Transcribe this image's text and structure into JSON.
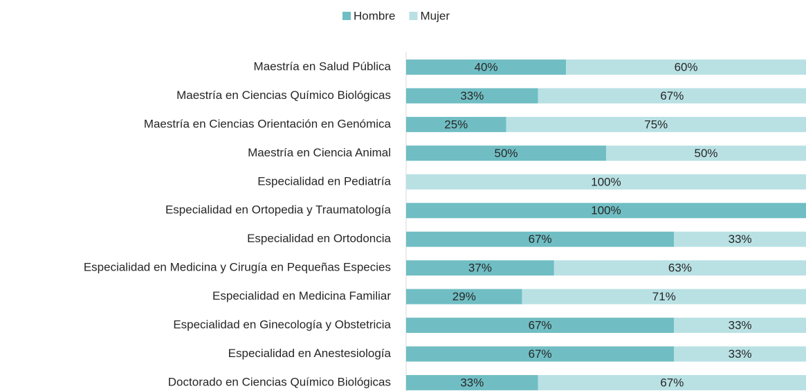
{
  "chart_data": {
    "type": "stacked-bar-horizontal",
    "categories": [
      "Maestría en Salud Pública",
      "Maestría en Ciencias Químico Biológicas",
      "Maestría en Ciencias Orientación en Genómica",
      "Maestría en Ciencia Animal",
      "Especialidad en Pediatría",
      "Especialidad en Ortopedia y Traumatología",
      "Especialidad en Ortodoncia",
      "Especialidad en Medicina y Cirugía en Pequeñas Especies",
      "Especialidad en Medicina Familiar",
      "Especialidad en Ginecología y Obstetricia",
      "Especialidad en Anestesiología",
      "Doctorado en Ciencias Químico Biológicas"
    ],
    "series": [
      {
        "name": "Hombre",
        "color": "#70bec4",
        "values": [
          40,
          33,
          25,
          50,
          0,
          100,
          67,
          37,
          29,
          67,
          67,
          33
        ],
        "value_labels": [
          "40%",
          "33%",
          "25%",
          "50%",
          null,
          "100%",
          "67%",
          "37%",
          "29%",
          "67%",
          "67%",
          "33%"
        ]
      },
      {
        "name": "Mujer",
        "color": "#b9e1e4",
        "values": [
          60,
          67,
          75,
          50,
          100,
          0,
          33,
          63,
          71,
          33,
          33,
          67
        ],
        "value_labels": [
          "60%",
          "67%",
          "75%",
          "50%",
          "100%",
          null,
          "33%",
          "63%",
          "71%",
          "33%",
          "33%",
          "67%"
        ]
      }
    ],
    "legend": "top"
  }
}
